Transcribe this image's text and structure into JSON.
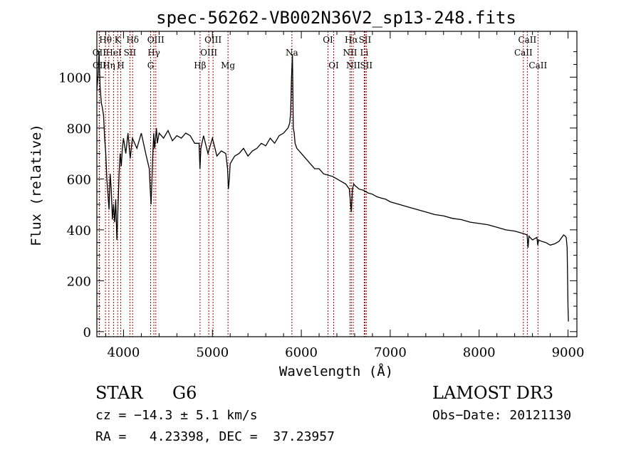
{
  "chart_data": {
    "type": "line",
    "title": "spec-56262-VB002N36V2_sp13-248.fits",
    "xlabel": "Wavelength (Å)",
    "ylabel": "Flux (relative)",
    "xlim": [
      3700,
      9100
    ],
    "ylim": [
      -20,
      1180
    ],
    "xticks": [
      4000,
      5000,
      6000,
      7000,
      8000,
      9000
    ],
    "yticks": [
      0,
      200,
      400,
      600,
      800,
      1000
    ],
    "series": [
      {
        "name": "flux",
        "x": [
          3700,
          3712,
          3725,
          3737,
          3750,
          3762,
          3775,
          3787,
          3800,
          3812,
          3825,
          3837,
          3850,
          3862,
          3875,
          3887,
          3900,
          3912,
          3925,
          3937,
          3950,
          3962,
          3975,
          3987,
          4000,
          4025,
          4050,
          4075,
          4100,
          4150,
          4200,
          4250,
          4290,
          4300,
          4310,
          4320,
          4330,
          4340,
          4350,
          4360,
          4370,
          4380,
          4400,
          4450,
          4500,
          4550,
          4600,
          4650,
          4700,
          4750,
          4800,
          4850,
          4860,
          4870,
          4900,
          4950,
          5000,
          5050,
          5100,
          5150,
          5170,
          5180,
          5190,
          5200,
          5250,
          5300,
          5350,
          5400,
          5450,
          5500,
          5550,
          5600,
          5650,
          5700,
          5750,
          5800,
          5850,
          5870,
          5880,
          5890,
          5900,
          5910,
          5920,
          5930,
          5950,
          6000,
          6050,
          6100,
          6150,
          6200,
          6250,
          6300,
          6350,
          6400,
          6450,
          6500,
          6540,
          6550,
          6563,
          6575,
          6590,
          6600,
          6650,
          6700,
          6750,
          6800,
          6850,
          6900,
          6950,
          7000,
          7100,
          7200,
          7300,
          7400,
          7500,
          7600,
          7700,
          7800,
          7900,
          8000,
          8100,
          8200,
          8300,
          8400,
          8450,
          8500,
          8540,
          8550,
          8560,
          8600,
          8650,
          8660,
          8670,
          8700,
          8750,
          8800,
          8850,
          8900,
          8950,
          8970,
          8980,
          8990,
          9000,
          9005
        ],
        "values": [
          950,
          1000,
          1100,
          960,
          900,
          880,
          850,
          760,
          700,
          600,
          540,
          480,
          620,
          560,
          440,
          500,
          430,
          520,
          360,
          480,
          620,
          700,
          650,
          720,
          760,
          700,
          780,
          680,
          760,
          720,
          780,
          700,
          640,
          560,
          500,
          600,
          700,
          780,
          720,
          760,
          800,
          740,
          780,
          760,
          790,
          750,
          770,
          760,
          780,
          770,
          740,
          740,
          640,
          720,
          770,
          700,
          760,
          690,
          710,
          700,
          640,
          560,
          600,
          660,
          690,
          700,
          720,
          690,
          710,
          720,
          740,
          730,
          760,
          740,
          770,
          780,
          800,
          820,
          860,
          1000,
          1090,
          800,
          780,
          740,
          720,
          700,
          680,
          660,
          640,
          640,
          620,
          615,
          610,
          600,
          590,
          580,
          560,
          520,
          470,
          560,
          580,
          575,
          560,
          555,
          545,
          540,
          530,
          525,
          520,
          510,
          500,
          490,
          480,
          470,
          460,
          455,
          445,
          440,
          430,
          425,
          420,
          410,
          400,
          395,
          390,
          385,
          380,
          330,
          375,
          360,
          370,
          340,
          360,
          355,
          350,
          340,
          345,
          355,
          380,
          375,
          370,
          330,
          100,
          40
        ]
      }
    ],
    "lines": [
      {
        "label": "Hθ",
        "wavelength": 3797,
        "row": 0
      },
      {
        "label": "OII",
        "wavelength": 3727,
        "row": 1
      },
      {
        "label": "OII",
        "wavelength": 3729,
        "row": 2
      },
      {
        "label": "K",
        "wavelength": 3934,
        "row": 0
      },
      {
        "label": "HeI",
        "wavelength": 3889,
        "row": 1
      },
      {
        "label": "Hη",
        "wavelength": 3835,
        "row": 2
      },
      {
        "label": "H",
        "wavelength": 3969,
        "row": 2
      },
      {
        "label": "SII",
        "wavelength": 4072,
        "row": 1
      },
      {
        "label": "Hδ",
        "wavelength": 4102,
        "row": 0
      },
      {
        "label": "OIII",
        "wavelength": 4363,
        "row": 0
      },
      {
        "label": "Hγ",
        "wavelength": 4341,
        "row": 1
      },
      {
        "label": "G",
        "wavelength": 4305,
        "row": 2
      },
      {
        "label": "Hβ",
        "wavelength": 4861,
        "row": 2
      },
      {
        "label": "OIII",
        "wavelength": 5007,
        "row": 0
      },
      {
        "label": "OIII",
        "wavelength": 4959,
        "row": 1
      },
      {
        "label": "Mg",
        "wavelength": 5175,
        "row": 2
      },
      {
        "label": "Na",
        "wavelength": 5894,
        "row": 1
      },
      {
        "label": "OI",
        "wavelength": 6300,
        "row": 0
      },
      {
        "label": "OI",
        "wavelength": 6364,
        "row": 2
      },
      {
        "label": "Hα",
        "wavelength": 6563,
        "row": 0
      },
      {
        "label": "NII",
        "wavelength": 6548,
        "row": 1
      },
      {
        "label": "NII",
        "wavelength": 6584,
        "row": 2
      },
      {
        "label": "SII",
        "wavelength": 6716,
        "row": 0
      },
      {
        "label": "Li",
        "wavelength": 6708,
        "row": 1
      },
      {
        "label": "SII",
        "wavelength": 6731,
        "row": 2
      },
      {
        "label": "CaII",
        "wavelength": 8542,
        "row": 0
      },
      {
        "label": "CaII",
        "wavelength": 8498,
        "row": 1
      },
      {
        "label": "CaII",
        "wavelength": 8662,
        "row": 2
      }
    ]
  },
  "info": {
    "class_label": "STAR",
    "subclass": "G6",
    "survey": "LAMOST DR3",
    "cz_text": "cz = −14.3 ± 5.1 km/s",
    "obs_date": "Obs−Date: 20121130",
    "coords": "RA =   4.23398, DEC =  37.23957"
  },
  "colors": {
    "line_marker": "#aa0000",
    "spectrum": "#000000"
  }
}
